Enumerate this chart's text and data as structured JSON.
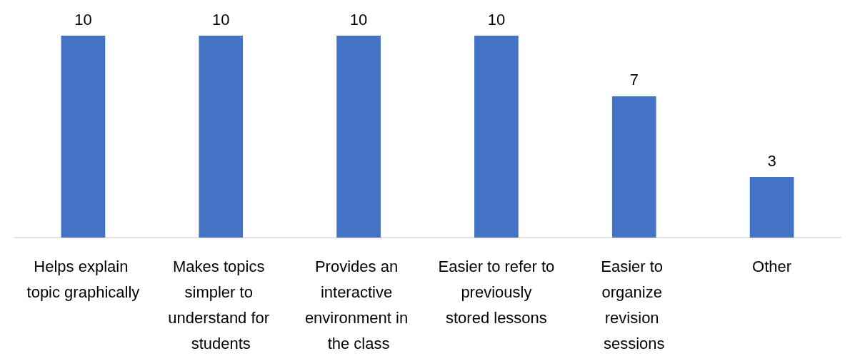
{
  "chart_data": {
    "type": "bar",
    "categories": [
      "Helps explain topic graphically",
      "Makes topics simpler to understand for students",
      "Provides an interactive environment in the class",
      "Easier to refer to previously stored lessons",
      "Easier to organize revision sessions",
      "Other"
    ],
    "values": [
      10,
      10,
      10,
      10,
      7,
      3
    ],
    "color": "#4472c4",
    "data_labels": true
  }
}
